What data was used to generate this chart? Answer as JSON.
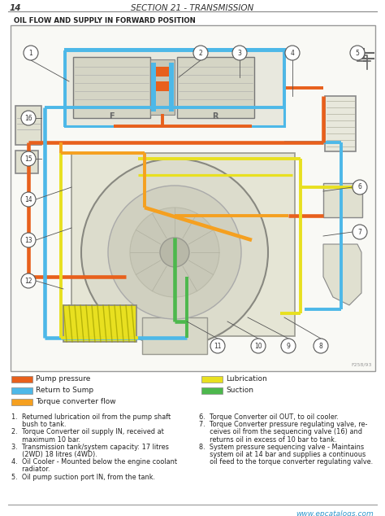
{
  "page_num": "14",
  "section_title": "SECTION 21 - TRANSMISSION",
  "diagram_title": "OIL FLOW AND SUPPLY IN FORWARD POSITION",
  "bg_color": "#ffffff",
  "colors": {
    "pump_pressure": "#e8601c",
    "return_to_sump": "#4db8e8",
    "torque_converter_flow": "#f5a020",
    "lubrication": "#e8e020",
    "suction": "#4db84d"
  },
  "legend_left": [
    [
      "#e8601c",
      "Pump pressure"
    ],
    [
      "#4db8e8",
      "Return to Sump"
    ],
    [
      "#f5a020",
      "Torque converter flow"
    ]
  ],
  "legend_right": [
    [
      "#e8e020",
      "Lubrication"
    ],
    [
      "#4db84d",
      "Suction"
    ]
  ],
  "notes_left": [
    [
      "1.",
      "Returned lubrication oil from the pump shaft bush to tank."
    ],
    [
      "2.",
      "Torque Converter oil supply IN, received at maximum 10 bar."
    ],
    [
      "3.",
      "Transmission tank/system capacity: 17 litres (2WD) 18 litres (4WD)."
    ],
    [
      "4.",
      "Oil Cooler - Mounted below the engine coolant radiator."
    ],
    [
      "5.",
      "Oil pump suction port IN, from the tank."
    ]
  ],
  "notes_right": [
    [
      "6.",
      "Torque Converter oil OUT, to oil cooler."
    ],
    [
      "7.",
      "Torque Converter pressure regulating valve, re-ceives oil from the sequencing valve (16) and returns oil in excess of 10 bar to tank."
    ],
    [
      "8.",
      "System pressure sequencing valve - Maintains system oil at 14 bar and supplies a continuous oil feed to the torque converter regulating valve."
    ]
  ],
  "diagram_ref": "F258/93",
  "website": "www.epcatalogs.com"
}
